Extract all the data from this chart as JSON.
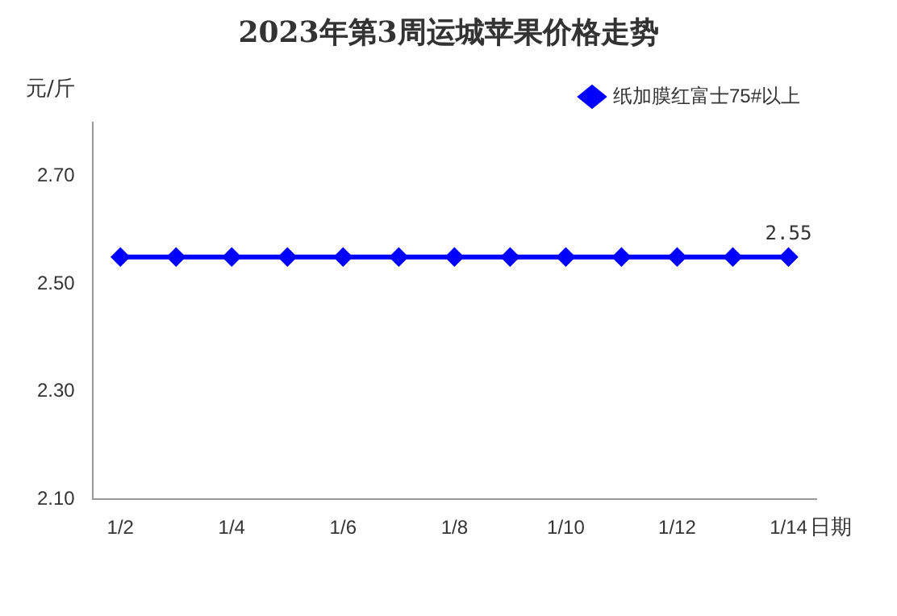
{
  "chart_data": {
    "type": "line",
    "title": "2023年第3周运城苹果价格走势",
    "ylabel": "元/斤",
    "xlabel": "日期",
    "categories": [
      "1/2",
      null,
      "1/4",
      null,
      "1/6",
      null,
      "1/8",
      null,
      "1/10",
      null,
      "1/12",
      null,
      "1/14"
    ],
    "series": [
      {
        "name": "纸加膜红富士75#以上",
        "color": "#0000ff",
        "values": [
          2.55,
          2.55,
          2.55,
          2.55,
          2.55,
          2.55,
          2.55,
          2.55,
          2.55,
          2.55,
          2.55,
          2.55,
          2.55
        ],
        "value_labels": [
          null,
          null,
          null,
          null,
          null,
          null,
          null,
          null,
          null,
          null,
          null,
          null,
          "2.55"
        ]
      }
    ],
    "ylim": [
      2.1,
      2.8
    ],
    "yticks": [
      {
        "value": 2.1,
        "label": "2.10"
      },
      {
        "value": 2.3,
        "label": "2.30"
      },
      {
        "value": 2.5,
        "label": "2.50"
      },
      {
        "value": 2.7,
        "label": "2.70"
      }
    ],
    "grid": false,
    "legend": "top right",
    "marker": "diamond",
    "line_style": "solid"
  }
}
